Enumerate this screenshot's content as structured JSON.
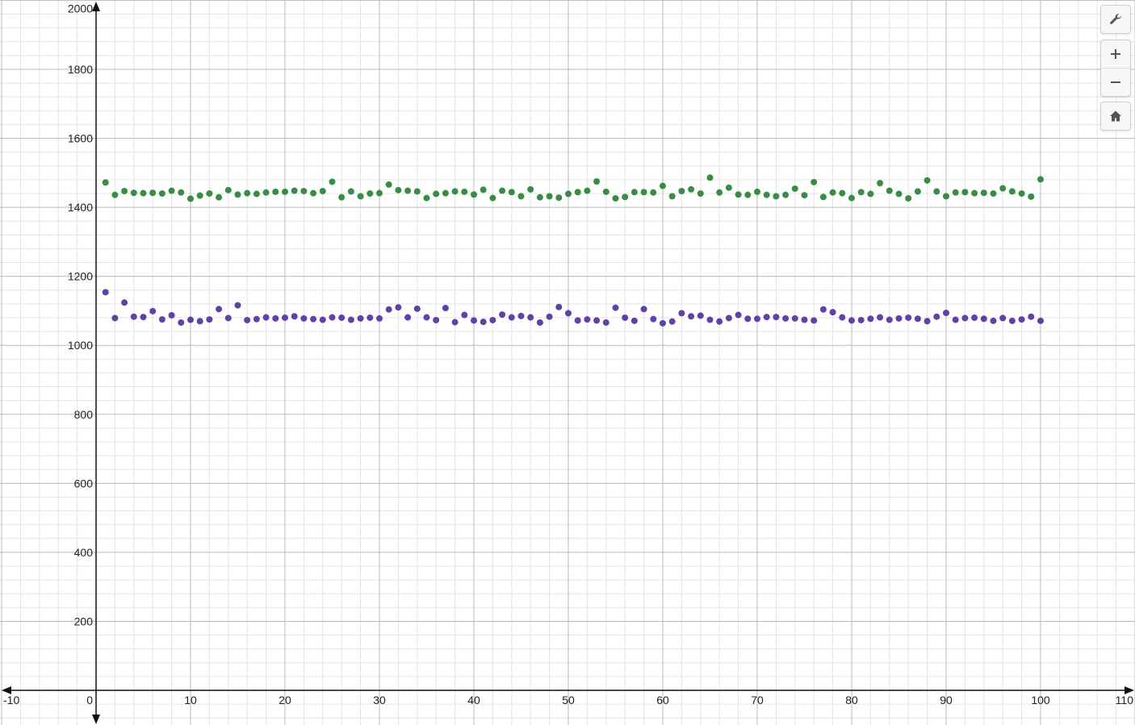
{
  "chart_data": {
    "type": "scatter",
    "title": "",
    "xlabel": "",
    "ylabel": "",
    "xlim": [
      -10,
      110
    ],
    "ylim": [
      -100,
      2000
    ],
    "grid": true,
    "x_ticks": [
      "-10",
      "0",
      "10",
      "20",
      "30",
      "40",
      "50",
      "60",
      "70",
      "80",
      "90",
      "100",
      "110"
    ],
    "y_ticks": [
      "200",
      "400",
      "600",
      "800",
      "1000",
      "1200",
      "1400",
      "1600",
      "1800",
      "2000"
    ],
    "series": [
      {
        "color": "#388c46",
        "x": [
          1,
          2,
          3,
          4,
          5,
          6,
          7,
          8,
          9,
          10,
          11,
          12,
          13,
          14,
          15,
          16,
          17,
          18,
          19,
          20,
          21,
          22,
          23,
          24,
          25,
          26,
          27,
          28,
          29,
          30,
          31,
          32,
          33,
          34,
          35,
          36,
          37,
          38,
          39,
          40,
          41,
          42,
          43,
          44,
          45,
          46,
          47,
          48,
          49,
          50,
          51,
          52,
          53,
          54,
          55,
          56,
          57,
          58,
          59,
          60,
          61,
          62,
          63,
          64,
          65,
          66,
          67,
          68,
          69,
          70,
          71,
          72,
          73,
          74,
          75,
          76,
          77,
          78,
          79,
          80,
          81,
          82,
          83,
          84,
          85,
          86,
          87,
          88,
          89,
          90,
          91,
          92,
          93,
          94,
          95,
          96,
          97,
          98,
          99,
          100
        ],
        "y": [
          1472,
          1436,
          1447,
          1442,
          1441,
          1442,
          1440,
          1448,
          1443,
          1425,
          1434,
          1440,
          1429,
          1450,
          1437,
          1441,
          1439,
          1443,
          1445,
          1445,
          1448,
          1447,
          1441,
          1447,
          1474,
          1429,
          1446,
          1432,
          1440,
          1441,
          1466,
          1450,
          1448,
          1446,
          1427,
          1439,
          1441,
          1446,
          1445,
          1437,
          1451,
          1427,
          1448,
          1444,
          1432,
          1452,
          1429,
          1432,
          1428,
          1439,
          1444,
          1448,
          1475,
          1445,
          1426,
          1430,
          1444,
          1444,
          1443,
          1462,
          1432,
          1447,
          1452,
          1440,
          1486,
          1443,
          1457,
          1437,
          1436,
          1445,
          1436,
          1432,
          1436,
          1454,
          1435,
          1473,
          1430,
          1443,
          1441,
          1427,
          1444,
          1439,
          1470,
          1448,
          1439,
          1426,
          1446,
          1478,
          1446,
          1432,
          1443,
          1444,
          1441,
          1442,
          1440,
          1455,
          1446,
          1440,
          1431,
          1481
        ]
      },
      {
        "color": "#6042a6",
        "x": [
          1,
          2,
          3,
          4,
          5,
          6,
          7,
          8,
          9,
          10,
          11,
          12,
          13,
          14,
          15,
          16,
          17,
          18,
          19,
          20,
          21,
          22,
          23,
          24,
          25,
          26,
          27,
          28,
          29,
          30,
          31,
          32,
          33,
          34,
          35,
          36,
          37,
          38,
          39,
          40,
          41,
          42,
          43,
          44,
          45,
          46,
          47,
          48,
          49,
          50,
          51,
          52,
          53,
          54,
          55,
          56,
          57,
          58,
          59,
          60,
          61,
          62,
          63,
          64,
          65,
          66,
          67,
          68,
          69,
          70,
          71,
          72,
          73,
          74,
          75,
          76,
          77,
          78,
          79,
          80,
          81,
          82,
          83,
          84,
          85,
          86,
          87,
          88,
          89,
          90,
          91,
          92,
          93,
          94,
          95,
          96,
          97,
          98,
          99,
          100
        ],
        "y": [
          1154,
          1079,
          1124,
          1083,
          1082,
          1099,
          1075,
          1087,
          1066,
          1074,
          1070,
          1075,
          1105,
          1079,
          1116,
          1073,
          1076,
          1081,
          1078,
          1080,
          1084,
          1078,
          1076,
          1074,
          1081,
          1080,
          1074,
          1078,
          1080,
          1078,
          1104,
          1110,
          1081,
          1106,
          1081,
          1073,
          1108,
          1067,
          1088,
          1072,
          1068,
          1073,
          1089,
          1081,
          1085,
          1081,
          1066,
          1083,
          1111,
          1093,
          1072,
          1075,
          1072,
          1066,
          1109,
          1080,
          1071,
          1105,
          1076,
          1064,
          1069,
          1093,
          1084,
          1086,
          1074,
          1069,
          1079,
          1088,
          1077,
          1077,
          1082,
          1082,
          1078,
          1078,
          1074,
          1072,
          1104,
          1096,
          1081,
          1072,
          1073,
          1077,
          1081,
          1074,
          1078,
          1080,
          1077,
          1070,
          1083,
          1094,
          1074,
          1079,
          1080,
          1077,
          1071,
          1079,
          1071,
          1075,
          1083,
          1071
        ]
      }
    ]
  },
  "toolbar": {
    "settings_icon": "wrench-icon",
    "zoom_in_icon": "plus-icon",
    "zoom_out_icon": "minus-icon",
    "home_icon": "home-icon"
  }
}
